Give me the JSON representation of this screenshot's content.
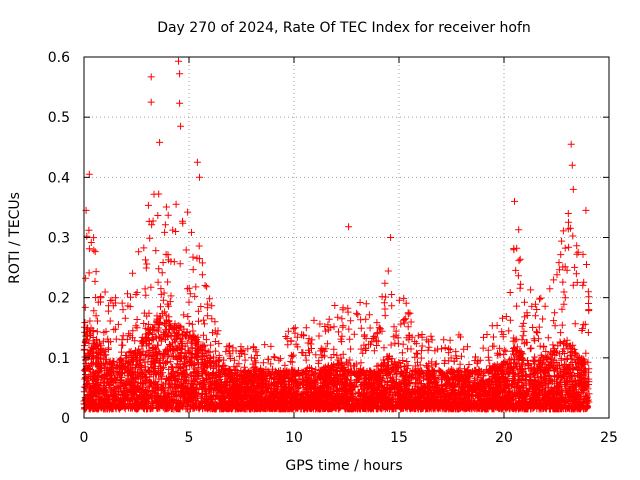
{
  "chart_data": {
    "type": "scatter",
    "title": "Day 270 of 2024, Rate Of TEC Index for receiver hofn",
    "xlabel": "GPS time / hours",
    "ylabel": "ROTI / TECUs",
    "xlim": [
      0,
      25
    ],
    "ylim": [
      0,
      0.6
    ],
    "x_ticks": [
      0,
      5,
      10,
      15,
      20,
      25
    ],
    "y_ticks": [
      0,
      0.1,
      0.2,
      0.3,
      0.4,
      0.5,
      0.6
    ],
    "x_tick_labels": [
      "0",
      "5",
      "10",
      "15",
      "20",
      "25"
    ],
    "y_tick_labels": [
      "0",
      "0.1",
      "0.2",
      "0.3",
      "0.4",
      "0.5",
      "0.6"
    ],
    "grid": true,
    "marker": "+",
    "marker_color": "#ff0000",
    "series": [
      {
        "name": "ROTI",
        "envelope": {
          "x": [
            0,
            0.5,
            1,
            1.5,
            2,
            2.5,
            3,
            3.5,
            4,
            4.5,
            5,
            5.5,
            6,
            6.5,
            7,
            8,
            9,
            10,
            11,
            12,
            12.5,
            13,
            14,
            14.5,
            15,
            15.5,
            16,
            17,
            18,
            19,
            20,
            20.5,
            21,
            21.5,
            22,
            22.5,
            23,
            23.5,
            24
          ],
          "max": [
            0.35,
            0.3,
            0.22,
            0.2,
            0.22,
            0.26,
            0.37,
            0.4,
            0.38,
            0.37,
            0.35,
            0.3,
            0.2,
            0.14,
            0.12,
            0.12,
            0.13,
            0.15,
            0.17,
            0.19,
            0.23,
            0.2,
            0.18,
            0.25,
            0.24,
            0.18,
            0.15,
            0.13,
            0.14,
            0.14,
            0.18,
            0.3,
            0.25,
            0.2,
            0.22,
            0.25,
            0.35,
            0.3,
            0.28
          ],
          "typical": [
            0.12,
            0.1,
            0.07,
            0.06,
            0.07,
            0.08,
            0.1,
            0.12,
            0.12,
            0.11,
            0.1,
            0.09,
            0.07,
            0.06,
            0.05,
            0.05,
            0.05,
            0.05,
            0.05,
            0.06,
            0.06,
            0.05,
            0.05,
            0.07,
            0.06,
            0.05,
            0.05,
            0.05,
            0.05,
            0.05,
            0.06,
            0.08,
            0.07,
            0.06,
            0.07,
            0.08,
            0.09,
            0.07,
            0.06
          ]
        },
        "peaks": [
          {
            "x": 0.25,
            "y": 0.405
          },
          {
            "x": 0.1,
            "y": 0.345
          },
          {
            "x": 3.2,
            "y": 0.567
          },
          {
            "x": 3.2,
            "y": 0.525
          },
          {
            "x": 3.6,
            "y": 0.458
          },
          {
            "x": 4.5,
            "y": 0.593
          },
          {
            "x": 4.55,
            "y": 0.572
          },
          {
            "x": 4.55,
            "y": 0.523
          },
          {
            "x": 4.6,
            "y": 0.485
          },
          {
            "x": 5.4,
            "y": 0.425
          },
          {
            "x": 5.5,
            "y": 0.4
          },
          {
            "x": 12.6,
            "y": 0.318
          },
          {
            "x": 14.6,
            "y": 0.3
          },
          {
            "x": 20.5,
            "y": 0.36
          },
          {
            "x": 20.7,
            "y": 0.313
          },
          {
            "x": 23.2,
            "y": 0.455
          },
          {
            "x": 23.25,
            "y": 0.42
          },
          {
            "x": 23.3,
            "y": 0.38
          },
          {
            "x": 23.9,
            "y": 0.345
          }
        ]
      }
    ]
  }
}
